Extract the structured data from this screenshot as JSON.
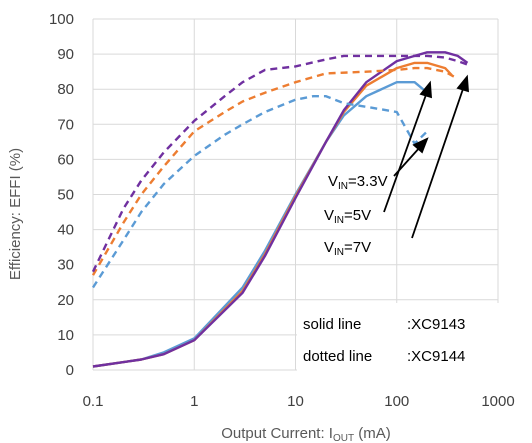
{
  "chart_data": {
    "type": "line",
    "xlabel_main": "Output Current: I",
    "xlabel_sub": "OUT",
    "xlabel_unit": " (mA)",
    "ylabel": "Efficiency: EFFI (%)",
    "xscale": "log",
    "xlim": [
      0.1,
      1000
    ],
    "ylim": [
      0,
      100
    ],
    "grid": true,
    "x_ticks": [
      "0.1",
      "1",
      "10",
      "100",
      "1000"
    ],
    "y_ticks": [
      "0",
      "10",
      "20",
      "30",
      "40",
      "50",
      "60",
      "70",
      "80",
      "90",
      "100"
    ],
    "colors": {
      "vin33": "#5b9bd5",
      "vin5": "#ed7d31",
      "vin7": "#7030a0"
    },
    "series": [
      {
        "name": "XC9143 VIN=3.3V",
        "style": "solid",
        "color_key": "vin33",
        "x": [
          0.1,
          0.3,
          0.5,
          1,
          3,
          5,
          10,
          20,
          30,
          50,
          100,
          150,
          200
        ],
        "y": [
          1,
          3,
          5,
          9,
          23.5,
          34,
          50,
          65,
          72.5,
          78,
          82,
          82,
          79
        ]
      },
      {
        "name": "XC9143 VIN=5V",
        "style": "solid",
        "color_key": "vin5",
        "x": [
          0.1,
          0.3,
          0.5,
          1,
          3,
          5,
          10,
          20,
          30,
          50,
          100,
          150,
          200,
          300,
          350
        ],
        "y": [
          1,
          3,
          4.5,
          8.5,
          22.5,
          33,
          49.5,
          65,
          73.5,
          81,
          86,
          87.5,
          87.5,
          86,
          84
        ]
      },
      {
        "name": "XC9143 VIN=7V",
        "style": "solid",
        "color_key": "vin7",
        "x": [
          0.1,
          0.3,
          0.5,
          1,
          3,
          5,
          10,
          20,
          30,
          50,
          100,
          150,
          200,
          300,
          400,
          500
        ],
        "y": [
          1,
          3,
          4.5,
          8.5,
          22,
          32.5,
          49,
          65,
          74,
          82,
          88,
          89.5,
          90.5,
          90.5,
          89.5,
          87.5
        ]
      },
      {
        "name": "XC9144 VIN=3.3V",
        "style": "dotted",
        "color_key": "vin33",
        "x": [
          0.1,
          0.2,
          0.3,
          0.5,
          1,
          2,
          3,
          5,
          10,
          15,
          20,
          30,
          50,
          100,
          150,
          200
        ],
        "y": [
          23.5,
          37,
          45,
          53,
          61,
          67,
          70,
          73.5,
          77,
          78,
          78,
          76,
          75,
          73.5,
          64.5,
          68
        ]
      },
      {
        "name": "XC9144 VIN=5V",
        "style": "dotted",
        "color_key": "vin5",
        "x": [
          0.1,
          0.2,
          0.3,
          0.5,
          1,
          2,
          3,
          5,
          10,
          20,
          50,
          100,
          150,
          200,
          300,
          400
        ],
        "y": [
          27,
          42,
          50,
          58,
          68,
          73.5,
          76.5,
          79,
          82,
          84.5,
          85,
          85.5,
          86,
          86,
          85,
          83
        ]
      },
      {
        "name": "XC9144 VIN=7V",
        "style": "dotted",
        "color_key": "vin7",
        "x": [
          0.1,
          0.2,
          0.3,
          0.5,
          1,
          2,
          3,
          5,
          10,
          20,
          30,
          50,
          100,
          200,
          300,
          400,
          500
        ],
        "y": [
          28,
          46,
          54,
          62,
          71,
          78,
          82,
          85.5,
          86.5,
          88.5,
          89.5,
          89.5,
          89.5,
          89.5,
          89,
          88,
          87
        ]
      }
    ],
    "annotations": {
      "vin_labels": [
        {
          "prefix": "V",
          "sub": "IN",
          "value": "=3.3V"
        },
        {
          "prefix": "V",
          "sub": "IN",
          "value": "=5V"
        },
        {
          "prefix": "V",
          "sub": "IN",
          "value": "=7V"
        }
      ],
      "legend_box": [
        {
          "key": "solid line",
          "value": ":XC9143"
        },
        {
          "key": "dotted line",
          "value": ":XC9144"
        }
      ]
    }
  }
}
